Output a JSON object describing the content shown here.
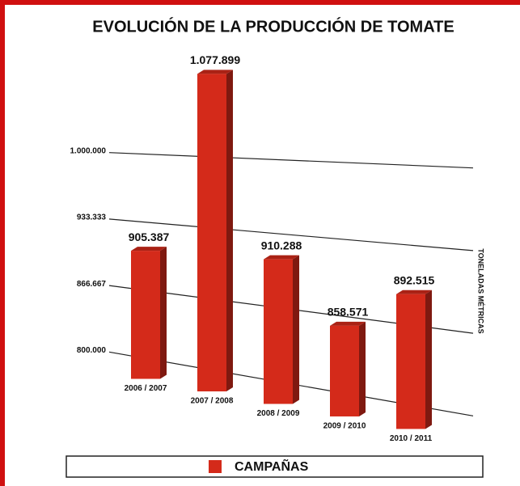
{
  "chart_data": {
    "type": "bar3d",
    "title": "EVOLUCIÓN  DE LA PRODUCCIÓN DE TOMATE",
    "y_axis_label": "TONELADAS MÉTRICAS",
    "categories": [
      "2006 / 2007",
      "2007 / 2008",
      "2008 / 2009",
      "2009 / 2010",
      "2010 / 2011"
    ],
    "series": [
      {
        "name": "CAMPAÑAS",
        "color": "#d42a1a",
        "values": [
          905387,
          1077899,
          910288,
          858571,
          892515
        ],
        "value_labels": [
          "905.387",
          "1.077.899",
          "910.288",
          "858.571",
          "892.515"
        ]
      }
    ],
    "ylim": [
      780000,
      1080000
    ],
    "yticks": [
      {
        "value": 800000,
        "label": "800.000"
      },
      {
        "value": 866667,
        "label": "866.667"
      },
      {
        "value": 933333,
        "label": "933.333"
      },
      {
        "value": 1000000,
        "label": "1.000.000"
      }
    ],
    "grid": true
  }
}
